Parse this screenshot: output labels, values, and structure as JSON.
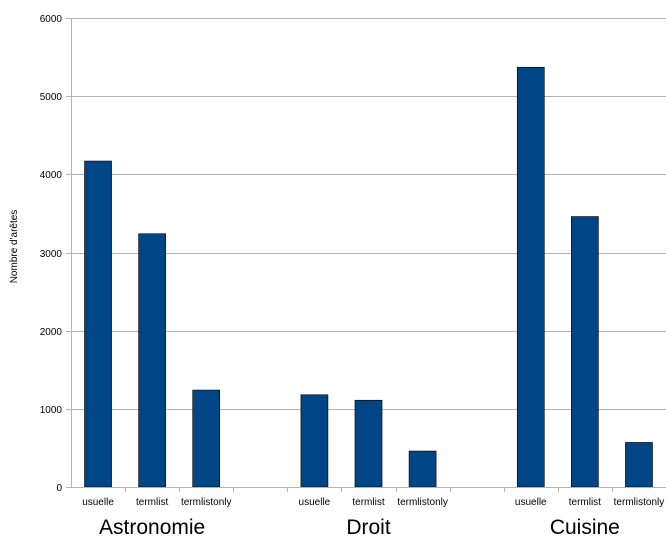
{
  "chart_data": {
    "type": "bar",
    "ylabel": "Nombre d'arêtes",
    "ylim": [
      0,
      6000
    ],
    "y_ticks": [
      0,
      1000,
      2000,
      3000,
      4000,
      5000,
      6000
    ],
    "grid": true,
    "bar_color": "#004586",
    "groups": [
      {
        "name": "Astronomie",
        "bars": [
          {
            "label": "usuelle",
            "value": 4170
          },
          {
            "label": "termlist",
            "value": 3240
          },
          {
            "label": "termlistonly",
            "value": 1240
          }
        ]
      },
      {
        "name": "Droit",
        "bars": [
          {
            "label": "usuelle",
            "value": 1180
          },
          {
            "label": "termlist",
            "value": 1110
          },
          {
            "label": "termlistonly",
            "value": 460
          }
        ]
      },
      {
        "name": "Cuisine",
        "bars": [
          {
            "label": "usuelle",
            "value": 5370
          },
          {
            "label": "termlist",
            "value": 3460
          },
          {
            "label": "termlistonly",
            "value": 570
          }
        ]
      }
    ]
  }
}
